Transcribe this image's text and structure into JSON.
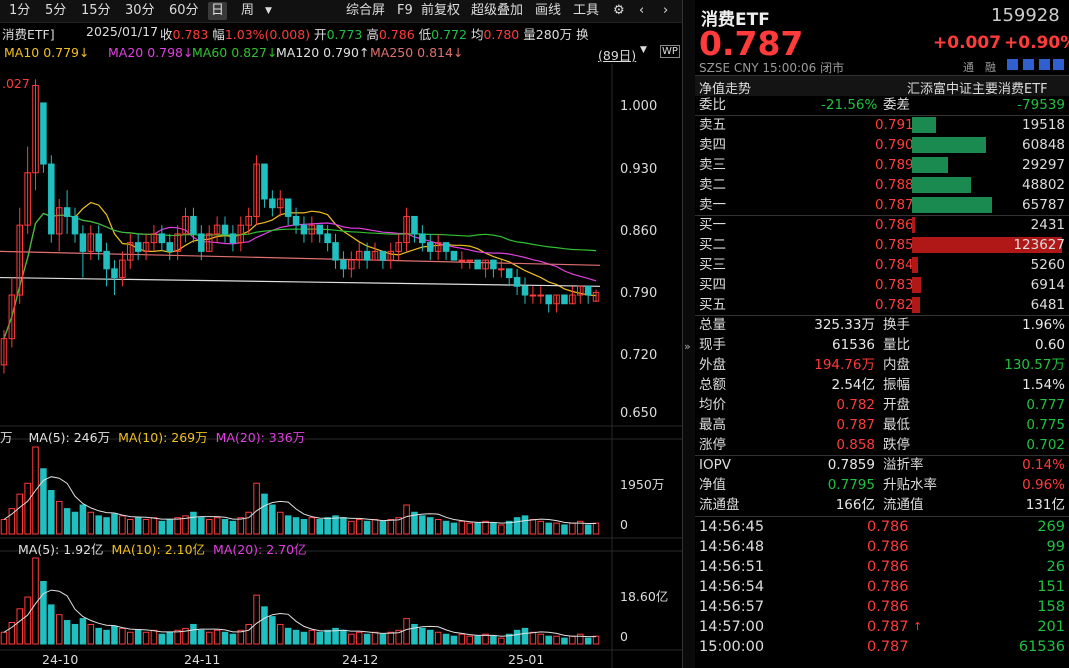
{
  "toolbar": {
    "periods": [
      "1分",
      "5分",
      "15分",
      "30分",
      "60分",
      "日",
      "周"
    ],
    "active_period": "日",
    "more_icon": "caret-down-icon",
    "items": [
      "综合屏",
      "F9",
      "前复权",
      "超级叠加",
      "画线",
      "工具"
    ],
    "settings_icon": "gear-icon",
    "back_icon": "chevron-left-icon",
    "forward_icon": "chevron-right-icon"
  },
  "info": {
    "name": "消费ETF]",
    "date": "2025/01/17",
    "close_label": "收",
    "close": "0.783",
    "range_label": "幅",
    "range": "1.03%(0.008)",
    "open_label": "开",
    "open": "0.773",
    "high_label": "高",
    "high": "0.786",
    "low_label": "低",
    "low": "0.772",
    "avg_label": "均",
    "avg": "0.780",
    "vol_label": "量",
    "vol": "280万",
    "swap_label": "换"
  },
  "ma": {
    "ma10": "MA10 0.779↓",
    "ma20": "MA20 0.798↓",
    "ma60": "MA60 0.827↓",
    "ma120": "MA120 0.790↑",
    "ma250": "MA250 0.814↓",
    "days": "(89日)"
  },
  "price_axis": [
    "1.000",
    "0.930",
    "0.860",
    "0.790",
    "0.720",
    "0.650"
  ],
  "max_price_label": ".027",
  "vol_panel": {
    "label_prefix": "万",
    "ma5": "MA(5): 246万",
    "ma10": "MA(10): 269万",
    "ma20": "MA(20): 336万",
    "axis_top": "1950万",
    "axis_zero": "0"
  },
  "amt_panel": {
    "ma5": "MA(5): 1.92亿",
    "ma10": "MA(10): 2.10亿",
    "ma20": "MA(20): 2.70亿",
    "axis_top": "18.60亿",
    "axis_zero": "0"
  },
  "date_axis": [
    "24-10",
    "24-11",
    "24-12",
    "25-01"
  ],
  "chart_data": {
    "type": "candlestick",
    "ylim": [
      0.63,
      1.04
    ],
    "ma_colors": {
      "ma10": "#f0c020",
      "ma20": "#e040e0",
      "ma60": "#30c030",
      "ma120": "#e0e0e0",
      "ma250": "#e07070"
    },
    "candles": [
      [
        0.7,
        0.73,
        0.69,
        0.74
      ],
      [
        0.73,
        0.78,
        0.72,
        0.8
      ],
      [
        0.78,
        0.86,
        0.77,
        0.88
      ],
      [
        0.86,
        0.92,
        0.85,
        0.95
      ],
      [
        0.92,
        1.02,
        0.9,
        1.027
      ],
      [
        1.0,
        0.93,
        0.92,
        1.0
      ],
      [
        0.93,
        0.85,
        0.84,
        0.94
      ],
      [
        0.85,
        0.88,
        0.83,
        0.89
      ],
      [
        0.88,
        0.87,
        0.85,
        0.9
      ],
      [
        0.87,
        0.85,
        0.84,
        0.88
      ],
      [
        0.85,
        0.83,
        0.8,
        0.86
      ],
      [
        0.83,
        0.85,
        0.82,
        0.86
      ],
      [
        0.85,
        0.83,
        0.82,
        0.86
      ],
      [
        0.83,
        0.81,
        0.79,
        0.84
      ],
      [
        0.81,
        0.8,
        0.78,
        0.82
      ],
      [
        0.8,
        0.82,
        0.79,
        0.83
      ],
      [
        0.82,
        0.84,
        0.81,
        0.85
      ],
      [
        0.84,
        0.83,
        0.82,
        0.85
      ],
      [
        0.83,
        0.84,
        0.82,
        0.85
      ],
      [
        0.84,
        0.85,
        0.83,
        0.86
      ],
      [
        0.85,
        0.84,
        0.83,
        0.86
      ],
      [
        0.84,
        0.83,
        0.82,
        0.85
      ],
      [
        0.83,
        0.85,
        0.82,
        0.86
      ],
      [
        0.85,
        0.87,
        0.84,
        0.88
      ],
      [
        0.87,
        0.85,
        0.84,
        0.88
      ],
      [
        0.85,
        0.83,
        0.82,
        0.86
      ],
      [
        0.83,
        0.85,
        0.83,
        0.86
      ],
      [
        0.85,
        0.86,
        0.84,
        0.87
      ],
      [
        0.86,
        0.85,
        0.84,
        0.87
      ],
      [
        0.85,
        0.84,
        0.83,
        0.86
      ],
      [
        0.84,
        0.86,
        0.83,
        0.87
      ],
      [
        0.86,
        0.87,
        0.85,
        0.88
      ],
      [
        0.87,
        0.93,
        0.86,
        0.94
      ],
      [
        0.93,
        0.89,
        0.88,
        0.93
      ],
      [
        0.89,
        0.88,
        0.87,
        0.9
      ],
      [
        0.88,
        0.89,
        0.87,
        0.9
      ],
      [
        0.89,
        0.87,
        0.86,
        0.89
      ],
      [
        0.87,
        0.86,
        0.85,
        0.88
      ],
      [
        0.86,
        0.85,
        0.84,
        0.87
      ],
      [
        0.85,
        0.86,
        0.84,
        0.87
      ],
      [
        0.86,
        0.85,
        0.84,
        0.86
      ],
      [
        0.85,
        0.84,
        0.83,
        0.86
      ],
      [
        0.84,
        0.82,
        0.81,
        0.85
      ],
      [
        0.82,
        0.81,
        0.8,
        0.83
      ],
      [
        0.81,
        0.82,
        0.8,
        0.83
      ],
      [
        0.82,
        0.83,
        0.81,
        0.84
      ],
      [
        0.83,
        0.82,
        0.81,
        0.84
      ],
      [
        0.82,
        0.83,
        0.82,
        0.84
      ],
      [
        0.83,
        0.82,
        0.81,
        0.83
      ],
      [
        0.82,
        0.83,
        0.81,
        0.84
      ],
      [
        0.83,
        0.84,
        0.82,
        0.85
      ],
      [
        0.84,
        0.87,
        0.83,
        0.88
      ],
      [
        0.87,
        0.85,
        0.84,
        0.87
      ],
      [
        0.85,
        0.84,
        0.83,
        0.86
      ],
      [
        0.84,
        0.83,
        0.82,
        0.85
      ],
      [
        0.83,
        0.84,
        0.82,
        0.85
      ],
      [
        0.84,
        0.83,
        0.82,
        0.84
      ],
      [
        0.83,
        0.82,
        0.82,
        0.83
      ],
      [
        0.82,
        0.82,
        0.81,
        0.83
      ],
      [
        0.82,
        0.82,
        0.81,
        0.82
      ],
      [
        0.82,
        0.81,
        0.81,
        0.82
      ],
      [
        0.81,
        0.82,
        0.8,
        0.82
      ],
      [
        0.82,
        0.81,
        0.8,
        0.82
      ],
      [
        0.81,
        0.81,
        0.8,
        0.82
      ],
      [
        0.81,
        0.8,
        0.79,
        0.81
      ],
      [
        0.8,
        0.79,
        0.78,
        0.81
      ],
      [
        0.79,
        0.78,
        0.77,
        0.8
      ],
      [
        0.78,
        0.78,
        0.77,
        0.79
      ],
      [
        0.78,
        0.78,
        0.77,
        0.79
      ],
      [
        0.78,
        0.77,
        0.76,
        0.78
      ],
      [
        0.77,
        0.78,
        0.76,
        0.78
      ],
      [
        0.78,
        0.77,
        0.77,
        0.78
      ],
      [
        0.77,
        0.78,
        0.77,
        0.79
      ],
      [
        0.78,
        0.79,
        0.77,
        0.79
      ],
      [
        0.79,
        0.78,
        0.77,
        0.79
      ],
      [
        0.773,
        0.783,
        0.772,
        0.786
      ]
    ],
    "volume": [
      8,
      14,
      22,
      28,
      48,
      36,
      24,
      18,
      14,
      12,
      16,
      12,
      10,
      9,
      11,
      10,
      8,
      9,
      8,
      9,
      7,
      8,
      9,
      10,
      12,
      9,
      8,
      9,
      8,
      7,
      9,
      12,
      28,
      22,
      16,
      12,
      10,
      9,
      8,
      9,
      8,
      9,
      10,
      9,
      7,
      8,
      7,
      8,
      7,
      8,
      9,
      16,
      12,
      10,
      9,
      8,
      7,
      6,
      7,
      6,
      6,
      7,
      6,
      5,
      7,
      9,
      10,
      8,
      7,
      6,
      6,
      5,
      6,
      7,
      5,
      6
    ],
    "amount": [
      6,
      11,
      18,
      24,
      44,
      32,
      20,
      15,
      12,
      10,
      13,
      10,
      8,
      7,
      9,
      8,
      6,
      7,
      6,
      7,
      5,
      6,
      7,
      8,
      10,
      7,
      6,
      7,
      6,
      5,
      7,
      10,
      25,
      19,
      14,
      10,
      8,
      7,
      6,
      7,
      6,
      7,
      8,
      7,
      5,
      6,
      5,
      6,
      5,
      6,
      7,
      13,
      10,
      8,
      7,
      6,
      5,
      4,
      5,
      4,
      4,
      5,
      4,
      3,
      5,
      7,
      8,
      6,
      5,
      4,
      4,
      3,
      4,
      5,
      3,
      4
    ]
  },
  "quote": {
    "name": "消费ETF",
    "code": "159928",
    "price": "0.787",
    "change": "+0.007",
    "pct": "+0.90%",
    "market": "SZSE",
    "currency": "CNY",
    "time": "15:00:06",
    "status": "闭市",
    "tags": [
      "通",
      "融"
    ],
    "nav_tab": "净值走势",
    "fund_name": "汇添富中证主要消费ETF"
  },
  "weibi": {
    "label": "委比",
    "value": "-21.56%",
    "diff_label": "委差",
    "diff_value": "-79539"
  },
  "asks": [
    {
      "label": "卖五",
      "price": "0.791",
      "vol": "19518",
      "bar": 0.16
    },
    {
      "label": "卖四",
      "price": "0.790",
      "vol": "60848",
      "bar": 0.49
    },
    {
      "label": "卖三",
      "price": "0.789",
      "vol": "29297",
      "bar": 0.24
    },
    {
      "label": "卖二",
      "price": "0.788",
      "vol": "48802",
      "bar": 0.39
    },
    {
      "label": "卖一",
      "price": "0.787",
      "vol": "65787",
      "bar": 0.53
    }
  ],
  "bids": [
    {
      "label": "买一",
      "price": "0.786",
      "vol": "2431",
      "bar": 0.02
    },
    {
      "label": "买二",
      "price": "0.785",
      "vol": "123627",
      "bar": 1.0
    },
    {
      "label": "买三",
      "price": "0.784",
      "vol": "5260",
      "bar": 0.04
    },
    {
      "label": "买四",
      "price": "0.783",
      "vol": "6914",
      "bar": 0.06
    },
    {
      "label": "买五",
      "price": "0.782",
      "vol": "6481",
      "bar": 0.05
    }
  ],
  "stats": [
    {
      "l1": "总量",
      "v1": "325.33万",
      "c1": "white",
      "l2": "换手",
      "v2": "1.96%",
      "c2": "white"
    },
    {
      "l1": "现手",
      "v1": "61536",
      "c1": "white",
      "l2": "量比",
      "v2": "0.60",
      "c2": "white"
    },
    {
      "l1": "外盘",
      "v1": "194.76万",
      "c1": "red",
      "l2": "内盘",
      "v2": "130.57万",
      "c2": "green"
    },
    {
      "l1": "总额",
      "v1": "2.54亿",
      "c1": "white",
      "l2": "振幅",
      "v2": "1.54%",
      "c2": "white"
    },
    {
      "l1": "均价",
      "v1": "0.782",
      "c1": "red",
      "l2": "开盘",
      "v2": "0.777",
      "c2": "green"
    },
    {
      "l1": "最高",
      "v1": "0.787",
      "c1": "red",
      "l2": "最低",
      "v2": "0.775",
      "c2": "green"
    },
    {
      "l1": "涨停",
      "v1": "0.858",
      "c1": "red",
      "l2": "跌停",
      "v2": "0.702",
      "c2": "green"
    }
  ],
  "stats2": [
    {
      "l1": "IOPV",
      "v1": "0.7859",
      "c1": "white",
      "l2": "溢折率",
      "v2": "0.14%",
      "c2": "red"
    },
    {
      "l1": "净值",
      "v1": "0.7795",
      "c1": "green",
      "l2": "升贴水率",
      "v2": "0.96%",
      "c2": "red"
    },
    {
      "l1": "流通盘",
      "v1": "166亿",
      "c1": "white",
      "l2": "流通值",
      "v2": "131亿",
      "c2": "white"
    }
  ],
  "ticks": [
    {
      "time": "14:56:45",
      "price": "0.786",
      "vol": "269",
      "vc": "green",
      "arrow": ""
    },
    {
      "time": "14:56:48",
      "price": "0.786",
      "vol": "99",
      "vc": "green",
      "arrow": ""
    },
    {
      "time": "14:56:51",
      "price": "0.786",
      "vol": "26",
      "vc": "green",
      "arrow": ""
    },
    {
      "time": "14:56:54",
      "price": "0.786",
      "vol": "151",
      "vc": "green",
      "arrow": ""
    },
    {
      "time": "14:56:57",
      "price": "0.786",
      "vol": "158",
      "vc": "green",
      "arrow": ""
    },
    {
      "time": "14:57:00",
      "price": "0.787",
      "vol": "201",
      "vc": "green",
      "arrow": "↑"
    },
    {
      "time": "15:00:00",
      "price": "0.787",
      "vol": "61536",
      "vc": "green",
      "arrow": ""
    }
  ],
  "colors": {
    "up": "#ff3b3b",
    "down": "#20c0c0",
    "bg": "#000000",
    "grid": "#2a2a2a",
    "green_bar": "#1a8a50",
    "red_bar": "#b01818"
  }
}
